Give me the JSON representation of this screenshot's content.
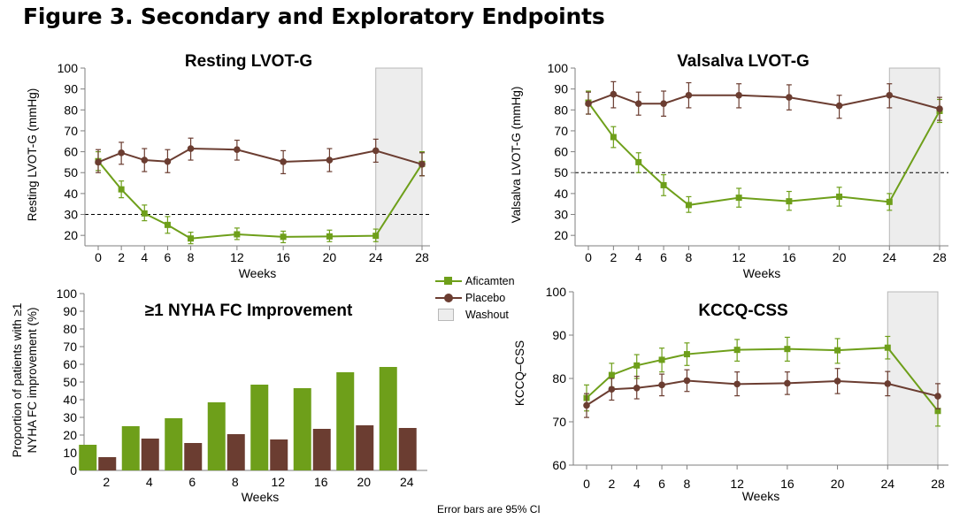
{
  "title": "Figure 3. Secondary and Exploratory Endpoints",
  "footnote": "Error bars are 95% CI",
  "colors": {
    "aficamten": "#6e9f1a",
    "placebo": "#6b3d31",
    "washout": "#ededed",
    "washout_border": "#b8b8b8"
  },
  "legend": [
    {
      "label": "Aficamten",
      "symbol": "line-square",
      "color": "#6e9f1a"
    },
    {
      "label": "Placebo",
      "symbol": "line-circle",
      "color": "#6b3d31"
    },
    {
      "label": "Washout",
      "symbol": "box",
      "color": "#ededed"
    }
  ],
  "chart_data": [
    {
      "id": "resting",
      "type": "line",
      "title": "Resting LVOT-G",
      "xlabel": "Weeks",
      "ylabel": "Resting LVOT-G (mmHg)",
      "x": [
        0,
        2,
        4,
        6,
        8,
        12,
        16,
        20,
        24,
        28
      ],
      "xticks": [
        0,
        2,
        4,
        6,
        8,
        12,
        16,
        20,
        24,
        28
      ],
      "xlim": [
        0,
        28
      ],
      "ylim": [
        15,
        100
      ],
      "yticks": [
        20,
        30,
        40,
        50,
        60,
        70,
        80,
        90,
        100
      ],
      "reference_line": 30,
      "washout": [
        24,
        28
      ],
      "series": [
        {
          "name": "Aficamten",
          "marker": "square",
          "values": [
            55.5,
            42,
            30.5,
            25,
            18.5,
            20.5,
            19.3,
            19.5,
            19.8,
            54.2
          ],
          "ci_low": [
            51,
            38,
            27,
            21,
            16,
            18,
            16.5,
            17,
            17,
            48.5
          ],
          "ci_high": [
            60,
            46,
            34.5,
            29,
            21.5,
            23.5,
            22,
            22.5,
            23,
            60
          ]
        },
        {
          "name": "Placebo",
          "marker": "circle",
          "values": [
            55,
            59.5,
            56,
            55.3,
            61.5,
            61,
            55.2,
            56,
            60.5,
            54
          ],
          "ci_low": [
            50,
            54,
            50.5,
            50,
            56,
            56,
            49.5,
            50.5,
            55,
            48.5
          ],
          "ci_high": [
            61,
            64.5,
            61.5,
            61,
            66.5,
            65.5,
            60.5,
            61.5,
            66,
            59.5
          ]
        }
      ]
    },
    {
      "id": "valsalva",
      "type": "line",
      "title": "Valsalva LVOT-G",
      "xlabel": "Weeks",
      "ylabel": "Valsalva LVOT-G (mmHg)",
      "x": [
        0,
        2,
        4,
        6,
        8,
        12,
        16,
        20,
        24,
        28
      ],
      "xticks": [
        0,
        2,
        4,
        6,
        8,
        12,
        16,
        20,
        24,
        28
      ],
      "xlim": [
        0,
        28
      ],
      "ylim": [
        15,
        100
      ],
      "yticks": [
        20,
        30,
        40,
        50,
        60,
        70,
        80,
        90,
        100
      ],
      "reference_line": 50,
      "washout": [
        24,
        28
      ],
      "series": [
        {
          "name": "Aficamten",
          "marker": "square",
          "values": [
            83.5,
            67,
            55,
            44,
            34.5,
            38,
            36.3,
            38.5,
            36,
            79.5
          ],
          "ci_low": [
            78,
            62,
            50,
            39,
            31,
            33.5,
            32,
            34,
            32,
            74
          ],
          "ci_high": [
            89,
            72,
            59.5,
            49,
            38.5,
            42.5,
            41,
            43,
            40,
            85
          ]
        },
        {
          "name": "Placebo",
          "marker": "circle",
          "values": [
            83,
            87.5,
            83,
            83,
            87,
            87,
            86,
            82,
            87,
            80.5
          ],
          "ci_low": [
            78,
            81,
            77.5,
            77,
            81,
            81,
            80,
            76,
            81,
            75
          ],
          "ci_high": [
            88.5,
            93.5,
            88.5,
            89,
            93,
            92.5,
            92,
            87,
            92.5,
            86
          ]
        }
      ]
    },
    {
      "id": "nyha",
      "type": "bar",
      "title": "≥1 NYHA FC Improvement",
      "xlabel": "Weeks",
      "ylabel": "Proportion of patients with ≥1 NYHA FC improvement (%)",
      "ylabel_lines": [
        "Proportion of patients with ≥1",
        "NYHA FC improvement (%)"
      ],
      "categories": [
        "2",
        "4",
        "6",
        "8",
        "12",
        "16",
        "20",
        "24"
      ],
      "ylim": [
        0,
        100
      ],
      "yticks": [
        0,
        10,
        20,
        30,
        40,
        50,
        60,
        70,
        80,
        90,
        100
      ],
      "series": [
        {
          "name": "Aficamten",
          "values": [
            14.5,
            25,
            29.5,
            38.5,
            48.5,
            46.5,
            55.5,
            58.5
          ]
        },
        {
          "name": "Placebo",
          "values": [
            7.5,
            18,
            15.5,
            20.5,
            17.5,
            23.5,
            25.5,
            24
          ]
        }
      ]
    },
    {
      "id": "kccq",
      "type": "line",
      "title": "KCCQ-CSS",
      "xlabel": "Weeks",
      "ylabel": "KCCQ–CSS",
      "x": [
        0,
        2,
        4,
        6,
        8,
        12,
        16,
        20,
        24,
        28
      ],
      "xticks": [
        0,
        2,
        4,
        6,
        8,
        12,
        16,
        20,
        24,
        28
      ],
      "xlim": [
        0,
        28
      ],
      "ylim": [
        60,
        100
      ],
      "yticks": [
        60,
        70,
        80,
        90,
        100
      ],
      "washout": [
        24,
        28
      ],
      "series": [
        {
          "name": "Aficamten",
          "marker": "square",
          "values": [
            75.5,
            80.8,
            83,
            84.3,
            85.6,
            86.6,
            86.8,
            86.5,
            87.1,
            72.5
          ],
          "ci_low": [
            72.5,
            78,
            80,
            81.5,
            83,
            84,
            84,
            83.5,
            84.5,
            69
          ],
          "ci_high": [
            78.5,
            83.5,
            85.5,
            87,
            88.2,
            89,
            89.5,
            89.2,
            89.7,
            76
          ]
        },
        {
          "name": "Placebo",
          "marker": "circle",
          "values": [
            73.8,
            77.5,
            77.8,
            78.5,
            79.5,
            78.7,
            78.9,
            79.4,
            78.8,
            75.9
          ],
          "ci_low": [
            71,
            75,
            75.3,
            76,
            77,
            76,
            76.3,
            76.5,
            76,
            73
          ],
          "ci_high": [
            76.5,
            80,
            80.5,
            81,
            82,
            81.5,
            81.5,
            82.3,
            81.6,
            78.8
          ]
        }
      ]
    }
  ]
}
